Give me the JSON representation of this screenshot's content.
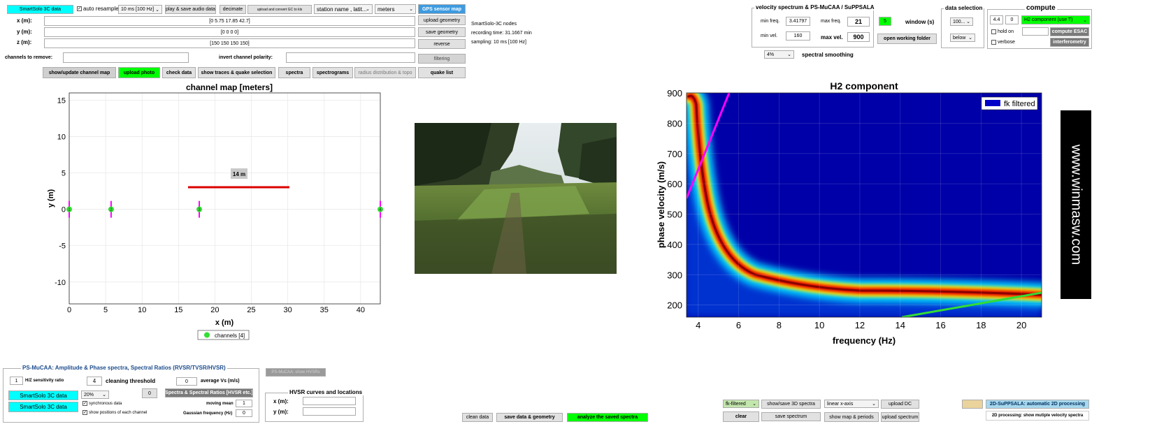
{
  "top": {
    "smartsolo_btn": "SmartSolo 3C data",
    "auto_resample": "auto resample",
    "resample_value": "10 ms [100 Hz]",
    "play_save": "play & save audio data",
    "decimate": "decimate",
    "upload_convert": "upload and convert GC to kls",
    "station_select": "station name , latit...",
    "units_select": "meters",
    "gps_btn": "GPS sensor map",
    "x_label": "x (m):",
    "y_label": "y (m):",
    "z_label": "z (m):",
    "x_value": "[0       5.75       17.85       42.7]",
    "y_value": "[0  0  0  0]",
    "z_value": "[150  150  150  150]",
    "upload_geometry": "upload geometry",
    "save_geometry": "save geometry",
    "reverse": "reverse",
    "info_nodes": "SmartSolo-3C nodes",
    "info_recording": "recording time: 31.1667 min",
    "info_sampling": "sampling: 10 ms [100 Hz]",
    "channels_remove": "channels to remove:",
    "invert_polarity": "invert channel polarity:",
    "filtering": "filtering",
    "show_update_map": "show/update channel map",
    "upload_photo": "upload photo",
    "check_data": "check data",
    "show_traces": "show traces & quake selection",
    "spectra": "spectra",
    "spectrograms": "spectrograms",
    "radius_dist": "radius distribution & topo",
    "quake_list": "quake list"
  },
  "velocity_panel": {
    "title": "velocity spectrum & PS-MuCAA / SuPPSALA",
    "min_freq_label": "min freq.",
    "min_freq": "3.41797",
    "max_freq_label": "max freq.",
    "max_freq": "21",
    "min_vel_label": "min vel.",
    "min_vel": "160",
    "max_vel_label": "max vel.",
    "max_vel": "900",
    "window_value": "5",
    "window_label": "window (s)",
    "open_folder": "open working folder",
    "smoothing_value": "4%",
    "smoothing_label": "spectral smoothing"
  },
  "data_selection": {
    "title": "data selection",
    "value1": "100...",
    "value2": "below"
  },
  "compute": {
    "title": "compute",
    "field1": "4.4",
    "field2": "0",
    "component": "H2 component (use T)",
    "hold_on": "hold on",
    "verbose": "verbose",
    "compute_esac": "compute ESAC",
    "interferometry": "interferometry"
  },
  "channel_map": {
    "title": "channel map [meters]",
    "xlabel": "x (m)",
    "ylabel": "y (m)",
    "xticks": [
      "0",
      "5",
      "10",
      "15",
      "20",
      "25",
      "30",
      "35",
      "40"
    ],
    "yticks": [
      "15",
      "10",
      "5",
      "0",
      "-5",
      "-10"
    ],
    "scale_label": "14 m",
    "legend": "channels [4]",
    "stations": [
      {
        "id": "1",
        "x": 0,
        "y": 0
      },
      {
        "id": "2",
        "x": 5.75,
        "y": 0
      },
      {
        "id": "3",
        "x": 17.85,
        "y": 0
      },
      {
        "id": "4",
        "x": 42.7,
        "y": 0
      }
    ]
  },
  "spectrum": {
    "title": "H2 component",
    "xlabel": "frequency (Hz)",
    "ylabel": "phase velocity (m/s)",
    "xticks": [
      "4",
      "6",
      "8",
      "10",
      "12",
      "14",
      "16",
      "18",
      "20"
    ],
    "yticks": [
      "900",
      "800",
      "700",
      "600",
      "500",
      "400",
      "300",
      "200"
    ],
    "legend": "fk filtered"
  },
  "brand": "www.winmasw.com",
  "bottom_left": {
    "title": "PS-MuCAA: Amplitude & Phase spectra, Spectral Ratios (RVSR/TVSR/HVSR)",
    "hz_value": "1",
    "hz_label": "H/Z sensitivity ratio",
    "clean_value": "4",
    "clean_label": "cleaning threshold",
    "avg_value": "0",
    "avg_label": "average Vs (m/s)",
    "smartsolo1": "SmartSolo 3C data",
    "smartsolo2": "SmartSolo 3C data",
    "pct_value": "20%",
    "zero_value": "0",
    "spectra_ratios": "Spectra & Spectral Ratios [HVSR etc.]",
    "synchronous": "synchronous data",
    "show_positions": "show positions of each channel",
    "moving_mean_label": "moving mean",
    "moving_mean": "1",
    "gaussian_label": "Gaussian frequency (Hz)",
    "gaussian": "0",
    "show_hvsrs": "PS-MuCAA: show HVSRs",
    "hvsr_title": "HVSR curves and locations",
    "x_label": "x (m):",
    "y_label": "y (m):"
  },
  "bottom_mid": {
    "clean_data": "clean data",
    "save_data_geo": "save data & geometry",
    "analyze": "analyze the saved spectra"
  },
  "bottom_right": {
    "fk_select": "fk-filtered",
    "show_save_3d": "show/save 3D spectra",
    "axis_select": "linear x-axis",
    "upload_dc": "upload DC",
    "clear": "clear",
    "save_spectrum": "save spectrum",
    "show_map": "show map & periods",
    "upload_spectrum": "upload spectrum",
    "suppsala_auto": "2D-SuPPSALA: automatic 2D processing",
    "processing_2d": "2D processing: show mutiple velocity spectra"
  },
  "colors": {
    "cyan": "#00ffff",
    "green": "#00ff00",
    "gps_blue": "#3d9be0",
    "station_green": "#33dd33",
    "station_line": "#ff00ff",
    "scale_red": "#dd0000"
  }
}
